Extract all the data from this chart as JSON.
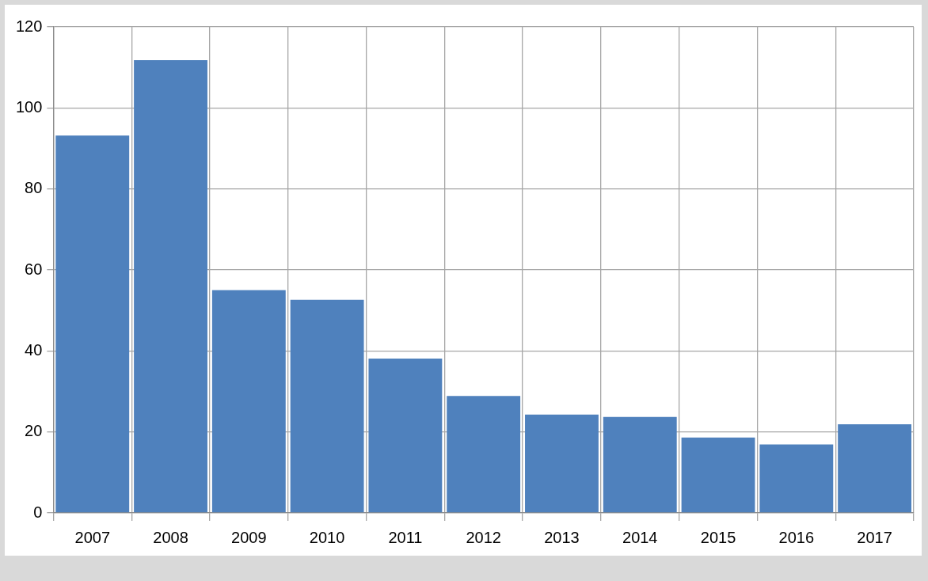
{
  "chart_data": {
    "type": "bar",
    "categories": [
      "2007",
      "2008",
      "2009",
      "2010",
      "2011",
      "2012",
      "2013",
      "2014",
      "2015",
      "2016",
      "2017"
    ],
    "values": [
      93.2,
      111.8,
      55,
      52.6,
      38.1,
      28.9,
      24.3,
      23.7,
      18.6,
      16.9,
      21.9
    ],
    "color": "#4f81bd",
    "ylim": [
      0,
      120
    ],
    "yticks": [
      0,
      20,
      40,
      60,
      80,
      100,
      120
    ],
    "grid": true,
    "legend": false
  }
}
